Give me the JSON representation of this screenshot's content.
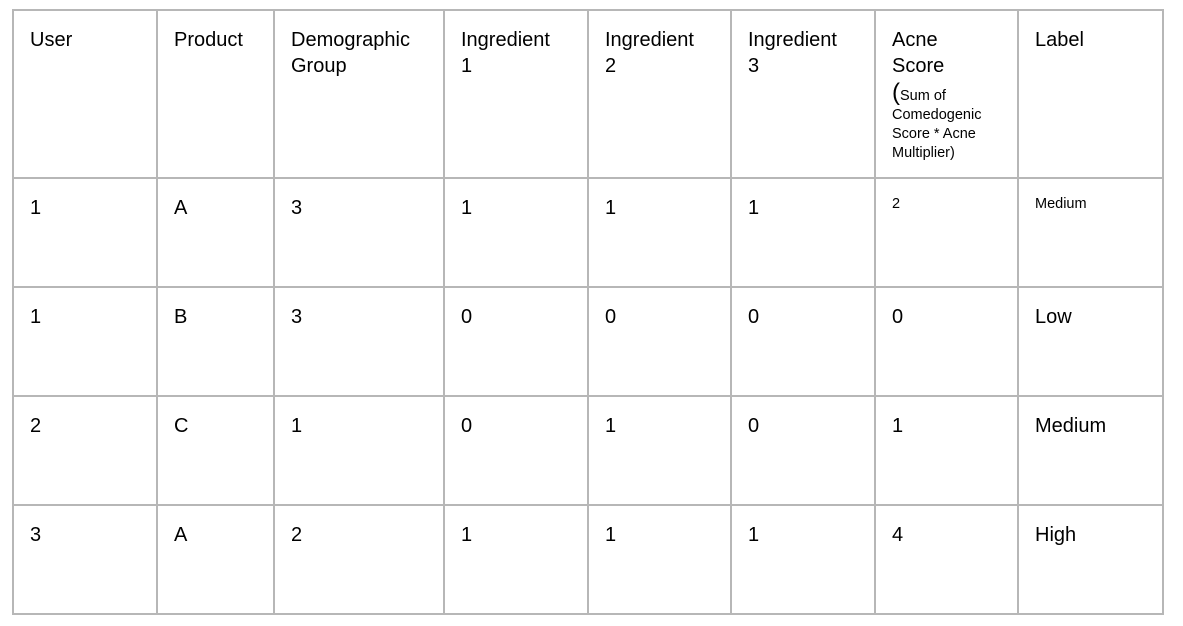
{
  "table": {
    "headers": {
      "user": "User",
      "product": "Product",
      "demographic_line1": "Demographic",
      "demographic_line2": "Group",
      "ingredient1_line1": "Ingredient",
      "ingredient1_line2": "1",
      "ingredient2_line1": "Ingredient",
      "ingredient2_line2": "2",
      "ingredient3_line1": "Ingredient",
      "ingredient3_line2": "3",
      "acne_line1": "Acne",
      "acne_line2": "Score",
      "acne_paren_open": "(",
      "acne_note_line1": "Sum of",
      "acne_note_line2": "Comedogenic",
      "acne_note_line3": "Score  * Acne",
      "acne_note_line4": "Multiplier)",
      "label": "Label"
    },
    "rows": [
      {
        "user": "1",
        "product": "A",
        "demographic": "3",
        "ingredient1": "1",
        "ingredient2": "1",
        "ingredient3": "1",
        "acne_score": "2",
        "label": "Medium"
      },
      {
        "user": "1",
        "product": "B",
        "demographic": "3",
        "ingredient1": "0",
        "ingredient2": "0",
        "ingredient3": "0",
        "acne_score": "0",
        "label": "Low"
      },
      {
        "user": "2",
        "product": "C",
        "demographic": "1",
        "ingredient1": "0",
        "ingredient2": "1",
        "ingredient3": "0",
        "acne_score": "1",
        "label": "Medium"
      },
      {
        "user": "3",
        "product": "A",
        "demographic": "2",
        "ingredient1": "1",
        "ingredient2": "1",
        "ingredient3": "1",
        "acne_score": "4",
        "label": "High"
      }
    ]
  }
}
